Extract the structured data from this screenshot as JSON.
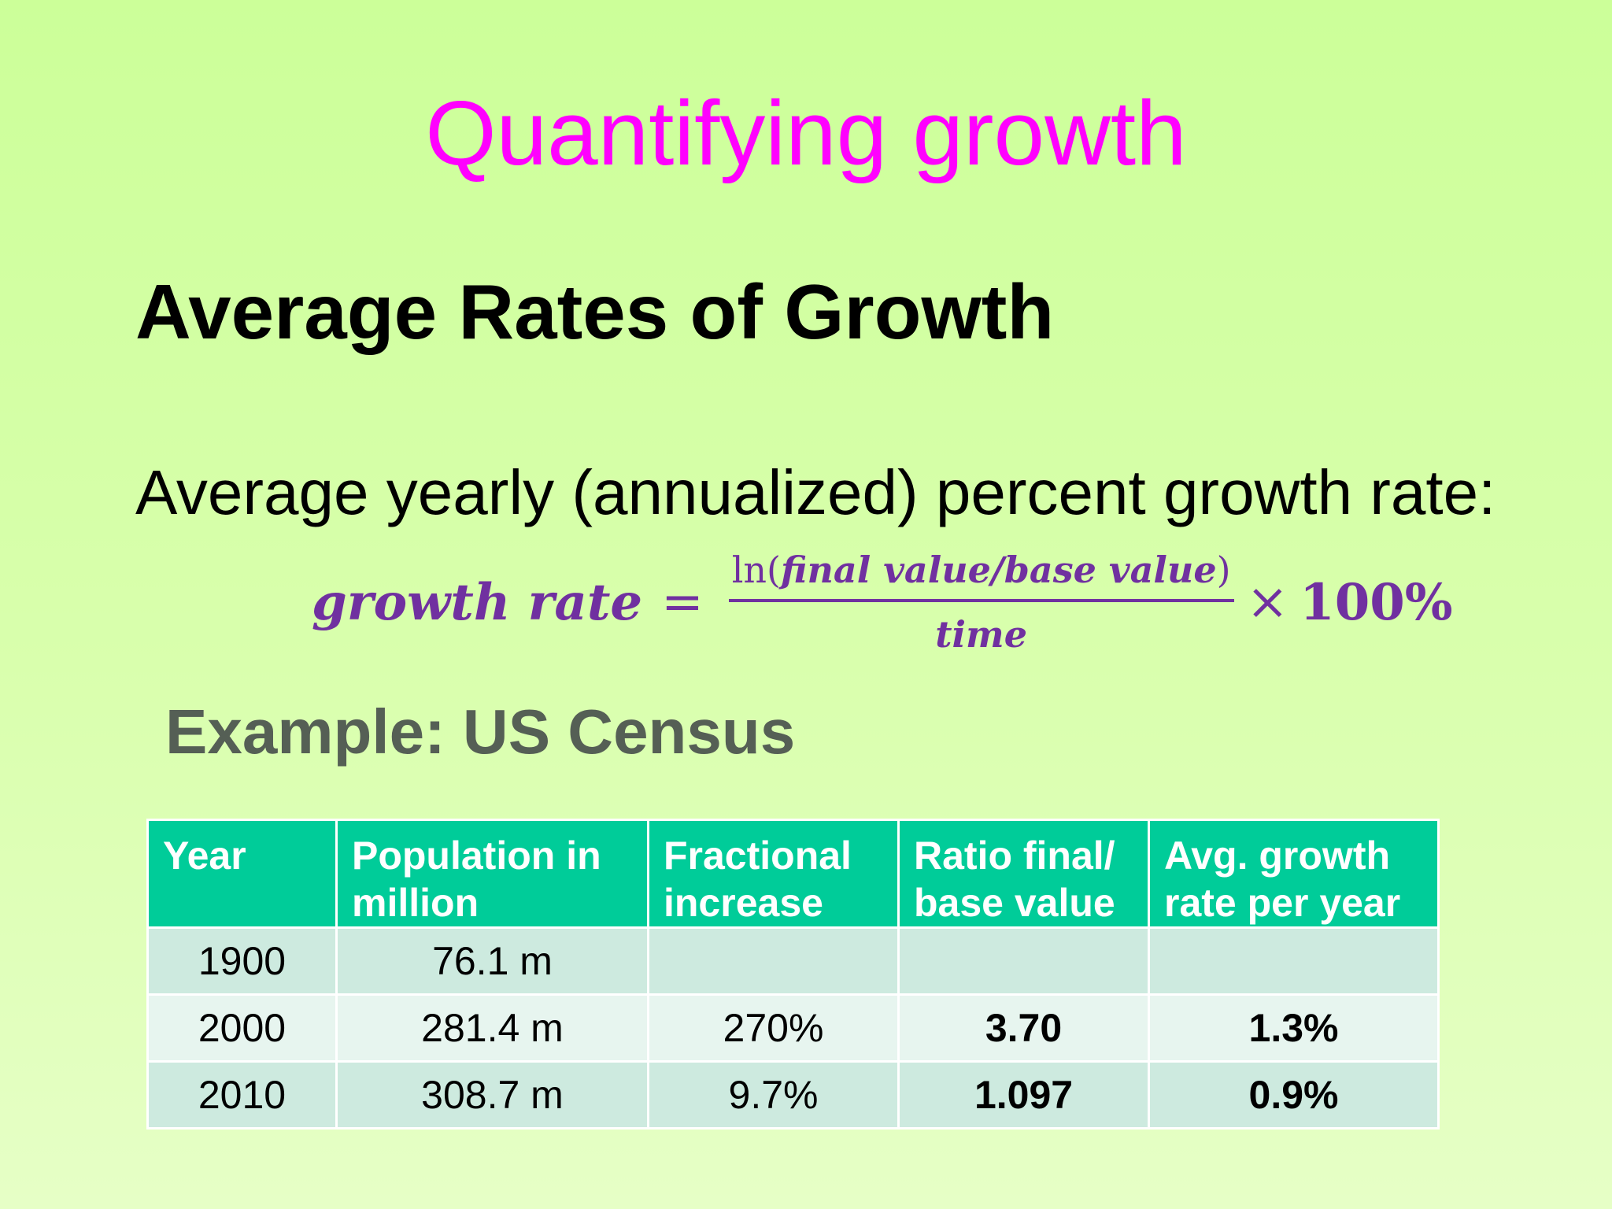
{
  "slide": {
    "title": "Quantifying growth",
    "heading": "Average Rates of Growth",
    "subheading": "Average yearly (annualized) percent growth rate:",
    "example_heading": "Example: US Census"
  },
  "formula": {
    "lhs": "growth rate",
    "equals": "=",
    "numerator_ln": "ln(",
    "numerator_vars": "final value/base value",
    "numerator_close": ")",
    "denominator": "time",
    "times": "×",
    "percent": "100%"
  },
  "table": {
    "headers": [
      "Year",
      "Population in million",
      "Fractional increase",
      "Ratio final/ base value",
      "Avg. growth rate per year"
    ],
    "rows": [
      {
        "year": "1900",
        "population": "76.1 m",
        "fractional": "",
        "ratio": "",
        "rate": ""
      },
      {
        "year": "2000",
        "population": "281.4 m",
        "fractional": "270%",
        "ratio": "3.70",
        "rate": "1.3%"
      },
      {
        "year": "2010",
        "population": "308.7 m",
        "fractional": "9.7%",
        "ratio": "1.097",
        "rate": "0.9%"
      }
    ]
  },
  "colors": {
    "title": "#ff00ff",
    "formula": "#7030a0",
    "header_bg": "#00cc99",
    "example_heading": "#555f55"
  }
}
